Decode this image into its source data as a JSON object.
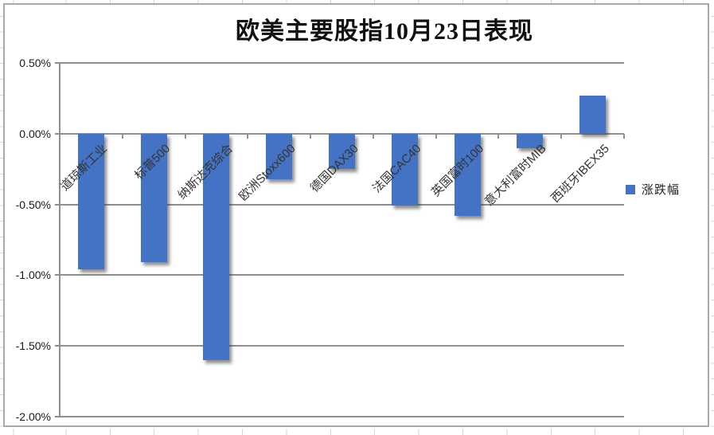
{
  "chart_data": {
    "type": "bar",
    "title": "欧美主要股指10月23日表现",
    "categories": [
      "道琼斯工业",
      "标普500",
      "纳斯达克综合",
      "欧洲Stoxx600",
      "德国DAX30",
      "法国CAC40",
      "英国富时100",
      "意大利富时MIB",
      "西班牙IBEX35"
    ],
    "series": [
      {
        "name": "涨跌幅",
        "values": [
          -0.96,
          -0.91,
          -1.6,
          -0.32,
          -0.25,
          -0.51,
          -0.58,
          -0.1,
          0.27
        ]
      }
    ],
    "value_unit": "%",
    "ylim": [
      -2.0,
      0.5
    ],
    "grid": true,
    "y_ticks": [
      {
        "v": 0.5,
        "label": "0.50%"
      },
      {
        "v": 0.0,
        "label": "0.00%"
      },
      {
        "v": -0.5,
        "label": "-0.50%"
      },
      {
        "v": -1.0,
        "label": "-1.00%"
      },
      {
        "v": -1.5,
        "label": "-1.50%"
      },
      {
        "v": -2.0,
        "label": "-2.00%"
      }
    ],
    "legend": {
      "label": "涨跌幅",
      "position": "right"
    },
    "colors": {
      "bar": "#4472C4",
      "gridline": "#8f8f8f",
      "axis": "#8f8f8f",
      "frame_border": "#a8a8a8",
      "title_text": "#111111",
      "category_text": "#333333",
      "tick_text": "#1a1a1a"
    }
  }
}
